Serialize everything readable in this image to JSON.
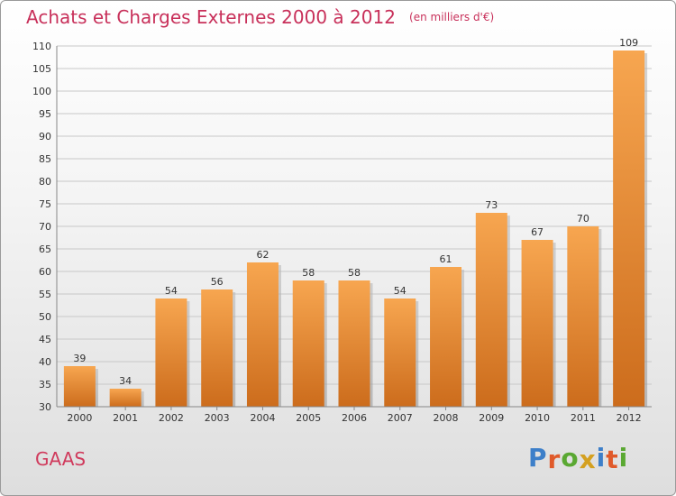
{
  "title": "Achats et Charges Externes 2000 à 2012",
  "subtitle": "(en milliers d'€)",
  "commune": "GAAS",
  "logo": {
    "text": "Proxiti",
    "letter_colors": [
      "#3d7fc9",
      "#e05a2a",
      "#5aa832",
      "#d4a020",
      "#3d7fc9",
      "#e05a2a",
      "#5aa832"
    ]
  },
  "colors": {
    "bar_top": "#f7a650",
    "bar_bottom": "#cc6c1c",
    "grid": "#c8c8c8",
    "axis_text": "#333333"
  },
  "chart_data": {
    "type": "bar",
    "title": "Achats et Charges Externes 2000 à 2012",
    "subtitle": "(en milliers d'€)",
    "categories": [
      "2000",
      "2001",
      "2002",
      "2003",
      "2004",
      "2005",
      "2006",
      "2007",
      "2008",
      "2009",
      "2010",
      "2011",
      "2012"
    ],
    "values": [
      39,
      34,
      54,
      56,
      62,
      58,
      58,
      54,
      61,
      73,
      67,
      70,
      109
    ],
    "ylim": [
      30,
      110
    ],
    "yticks": [
      30,
      35,
      40,
      45,
      50,
      55,
      60,
      65,
      70,
      75,
      80,
      85,
      90,
      95,
      100,
      105,
      110
    ],
    "grid": true,
    "data_labels": true
  }
}
